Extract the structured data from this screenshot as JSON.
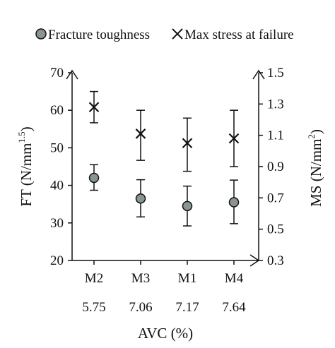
{
  "chart_data": {
    "type": "scatter",
    "categories": [
      "M2",
      "M3",
      "M1",
      "M4"
    ],
    "avc_values": [
      "5.75",
      "7.06",
      "7.17",
      "7.64"
    ],
    "xlabel": "AVC (%)",
    "ylabel_left": "FT (N/mm",
    "ylabel_left_sup": "1.5",
    "ylabel_left_end": ")",
    "ylabel_right": "MS  (N/mm",
    "ylabel_right_sup": "2",
    "ylabel_right_end": ")",
    "ylim_left": [
      20,
      70
    ],
    "yticks_left": [
      "20",
      "30",
      "40",
      "50",
      "60",
      "70"
    ],
    "ylim_right": [
      0.3,
      1.5
    ],
    "yticks_right": [
      "0.3",
      "0.5",
      "0.7",
      "0.9",
      "1.1",
      "1.3",
      "1.5"
    ],
    "grid": false,
    "legend_position": "top",
    "series": [
      {
        "name": "Fracture toughness",
        "axis": "left",
        "marker": "circle",
        "color": "#8a9590",
        "values": [
          42.0,
          36.5,
          34.5,
          35.5
        ],
        "err_low": [
          38.7,
          31.6,
          29.2,
          29.8
        ],
        "err_high": [
          45.5,
          41.5,
          39.8,
          41.4
        ]
      },
      {
        "name": "Max stress at failure",
        "axis": "right",
        "marker": "x",
        "color": "#111111",
        "values": [
          1.28,
          1.11,
          1.05,
          1.08
        ],
        "err_low": [
          1.18,
          0.94,
          0.87,
          0.9
        ],
        "err_high": [
          1.38,
          1.26,
          1.21,
          1.26
        ]
      }
    ]
  }
}
